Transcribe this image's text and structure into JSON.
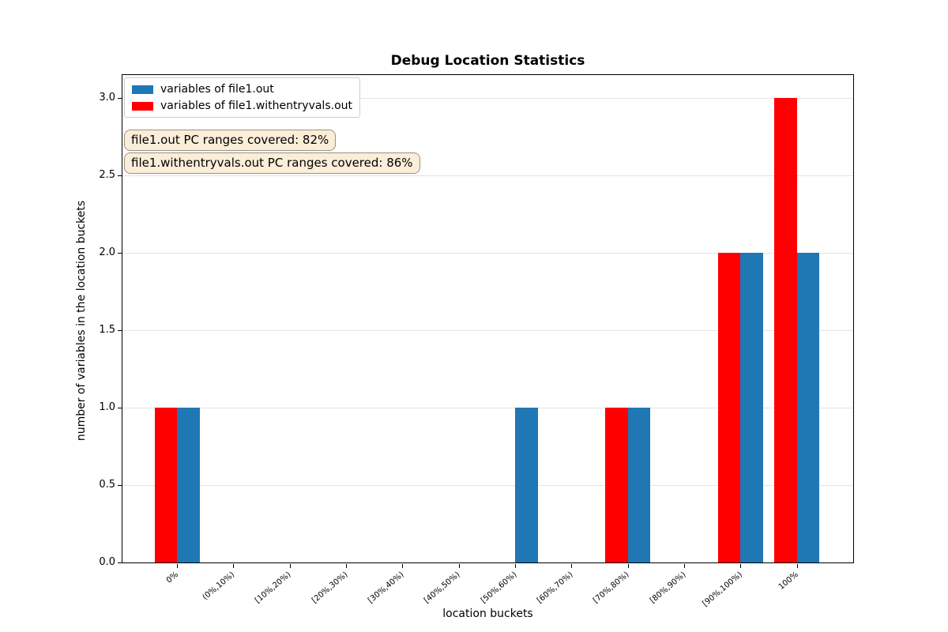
{
  "figure": {
    "title": "Debug Location Statistics",
    "xlabel": "location buckets",
    "ylabel": "number of variables in the location buckets"
  },
  "legend": {
    "items": [
      {
        "label": "variables of file1.out",
        "color": "#1f77b4"
      },
      {
        "label": "variables of file1.withentryvals.out",
        "color": "#ff0000"
      }
    ]
  },
  "annotations": [
    {
      "text": "file1.out PC ranges covered: 82%"
    },
    {
      "text": "file1.withentryvals.out PC ranges covered: 86%"
    }
  ],
  "chart_data": {
    "type": "bar",
    "title": "Debug Location Statistics",
    "xlabel": "location buckets",
    "ylabel": "number of variables in the location buckets",
    "categories": [
      "0%",
      "(0%,10%)",
      "[10%,20%)",
      "[20%,30%)",
      "[30%,40%)",
      "[40%,50%)",
      "[50%,60%)",
      "[60%,70%)",
      "[70%,80%)",
      "[80%,90%)",
      "[90%,100%)",
      "100%"
    ],
    "series": [
      {
        "name": "variables of file1.out",
        "color": "#1f77b4",
        "align": "right",
        "values": [
          1,
          0,
          0,
          0,
          0,
          0,
          1,
          0,
          1,
          0,
          2,
          2
        ]
      },
      {
        "name": "variables of file1.withentryvals.out",
        "color": "#ff0000",
        "align": "left",
        "values": [
          1,
          0,
          0,
          0,
          0,
          0,
          0,
          0,
          1,
          0,
          2,
          3
        ]
      }
    ],
    "bar_width": 0.4,
    "ylim": [
      0,
      3.15
    ],
    "yticks": [
      "0.0",
      "0.5",
      "1.0",
      "1.5",
      "2.0",
      "2.5",
      "3.0"
    ],
    "grid": "y",
    "legend_position": "upper-left"
  }
}
